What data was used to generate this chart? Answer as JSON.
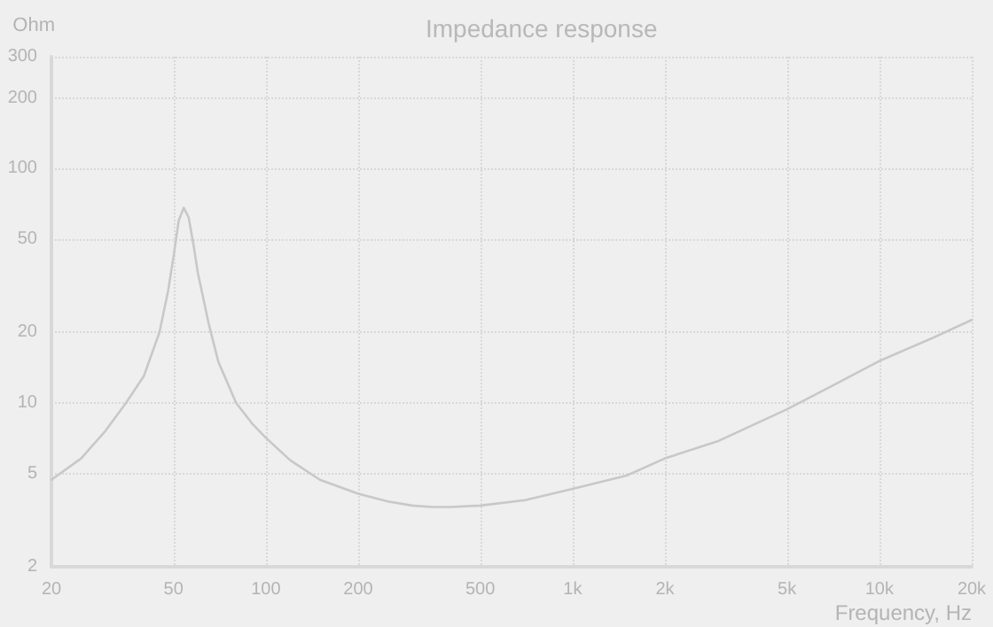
{
  "chart_data": {
    "type": "line",
    "title": "Impedance response",
    "xlabel": "Frequency, Hz",
    "ylabel": "Ohm",
    "x": [
      20,
      25,
      30,
      35,
      40,
      45,
      48,
      50,
      52,
      54,
      56,
      58,
      60,
      65,
      70,
      80,
      90,
      100,
      120,
      150,
      200,
      250,
      300,
      350,
      400,
      500,
      700,
      1000,
      1500,
      2000,
      3000,
      5000,
      7000,
      10000,
      15000,
      20000
    ],
    "series": [
      {
        "color": "#c8c8c8",
        "values": [
          4.7,
          5.8,
          7.6,
          10,
          13,
          20,
          30,
          42,
          60,
          68,
          62,
          48,
          36,
          22,
          15,
          10,
          8.2,
          7.1,
          5.7,
          4.7,
          4.1,
          3.8,
          3.65,
          3.6,
          3.6,
          3.65,
          3.85,
          4.3,
          4.9,
          5.8,
          6.9,
          9.4,
          11.8,
          15.1,
          19,
          22.6
        ]
      }
    ],
    "xlim": [
      20,
      20000
    ],
    "ylim": [
      2,
      300
    ],
    "xticks": [
      20,
      50,
      100,
      200,
      500,
      {
        "value": 1000,
        "label": "1k"
      },
      {
        "value": 2000,
        "label": "2k"
      },
      {
        "value": 5000,
        "label": "5k"
      },
      {
        "value": 10000,
        "label": "10k"
      },
      {
        "value": 20000,
        "label": "20k"
      }
    ],
    "yticks": [
      2,
      5,
      10,
      20,
      50,
      100,
      200,
      300
    ],
    "log": "xy",
    "grid": true,
    "marker": "none",
    "line_style": "solid"
  }
}
